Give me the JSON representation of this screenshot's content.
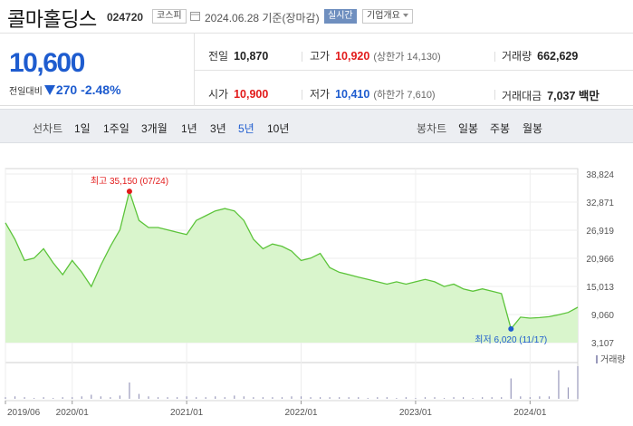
{
  "header": {
    "name": "콜마홀딩스",
    "code": "024720",
    "market": "코스피",
    "date": "2024.06.28 기준(장마감)",
    "realtime": "실시간",
    "company_info": "기업개요"
  },
  "quote": {
    "price": "10,600",
    "change_label": "전일대비",
    "change_value": "270",
    "change_pct": "-2.48%",
    "cells": {
      "prev_close": {
        "label": "전일",
        "value": "10,870"
      },
      "high": {
        "label": "고가",
        "value": "10,920",
        "sub": "(상한가 14,130)"
      },
      "volume": {
        "label": "거래량",
        "value": "662,629"
      },
      "open": {
        "label": "시가",
        "value": "10,900"
      },
      "low": {
        "label": "저가",
        "value": "10,410",
        "sub": "(하한가 7,610)"
      },
      "amount": {
        "label": "거래대금",
        "value": "7,037 백만"
      }
    }
  },
  "tabs": {
    "line_label": "선차트",
    "line_items": [
      "1일",
      "1주일",
      "3개월",
      "1년",
      "3년",
      "5년",
      "10년"
    ],
    "active": "5년",
    "candle_label": "봉차트",
    "candle_items": [
      "일봉",
      "주봉",
      "월봉"
    ]
  },
  "chart_data": {
    "type": "area",
    "period": "5년",
    "x_ticks": [
      "2019/06",
      "2020/01",
      "2021/01",
      "2022/01",
      "2023/01",
      "2024/01"
    ],
    "y_ticks": [
      38824,
      32871,
      26919,
      20966,
      15013,
      9060,
      3107
    ],
    "y_tick_labels": [
      "38,824",
      "32,871",
      "26,919",
      "20,966",
      "15,013",
      "9,060",
      "3,107"
    ],
    "ylim": [
      3107,
      38824
    ],
    "x": [
      "2019/06",
      "2019/07",
      "2019/08",
      "2019/09",
      "2019/10",
      "2019/11",
      "2019/12",
      "2020/01",
      "2020/02",
      "2020/03",
      "2020/04",
      "2020/05",
      "2020/06",
      "2020/07",
      "2020/08",
      "2020/09",
      "2020/10",
      "2020/11",
      "2020/12",
      "2021/01",
      "2021/02",
      "2021/03",
      "2021/04",
      "2021/05",
      "2021/06",
      "2021/07",
      "2021/08",
      "2021/09",
      "2021/10",
      "2021/11",
      "2021/12",
      "2022/01",
      "2022/02",
      "2022/03",
      "2022/04",
      "2022/05",
      "2022/06",
      "2022/07",
      "2022/08",
      "2022/09",
      "2022/10",
      "2022/11",
      "2022/12",
      "2023/01",
      "2023/02",
      "2023/03",
      "2023/04",
      "2023/05",
      "2023/06",
      "2023/07",
      "2023/08",
      "2023/09",
      "2023/10",
      "2023/11",
      "2023/12",
      "2024/01",
      "2024/02",
      "2024/03",
      "2024/04",
      "2024/05",
      "2024/06"
    ],
    "values": [
      28500,
      25000,
      20500,
      21000,
      23000,
      20000,
      17500,
      20500,
      18000,
      15000,
      19500,
      23500,
      27000,
      35150,
      29000,
      27500,
      27500,
      27000,
      26500,
      26000,
      29000,
      30000,
      31000,
      31500,
      31000,
      29000,
      25000,
      23000,
      24000,
      23500,
      22500,
      20500,
      21000,
      22000,
      19000,
      18000,
      17500,
      17000,
      16500,
      16000,
      15500,
      16000,
      15500,
      16000,
      16500,
      16000,
      15000,
      15500,
      14500,
      14000,
      14500,
      14000,
      13500,
      6020,
      8500,
      8300,
      8400,
      8600,
      9000,
      9500,
      10600
    ],
    "max": {
      "label": "최고 35,150 (07/24)",
      "value": 35150,
      "x": "2020/07"
    },
    "min": {
      "label": "최저 6,020 (11/17)",
      "value": 6020,
      "x": "2023/11"
    },
    "volume_label": "거래량",
    "volume": [
      2,
      3,
      2,
      1,
      2,
      1,
      2,
      2,
      3,
      5,
      3,
      2,
      4,
      20,
      6,
      3,
      2,
      2,
      2,
      3,
      2,
      2,
      3,
      2,
      4,
      3,
      2,
      2,
      2,
      2,
      3,
      3,
      2,
      2,
      2,
      2,
      2,
      2,
      1,
      2,
      2,
      1,
      2,
      1,
      2,
      2,
      1,
      2,
      2,
      1,
      2,
      2,
      2,
      25,
      3,
      2,
      3,
      3,
      35,
      14,
      40
    ],
    "colors": {
      "line": "#5cc43a",
      "fill": "#d9f5cc",
      "max": "#e21b1b",
      "min": "#1e5ccf",
      "volume": "#9999bb"
    }
  }
}
